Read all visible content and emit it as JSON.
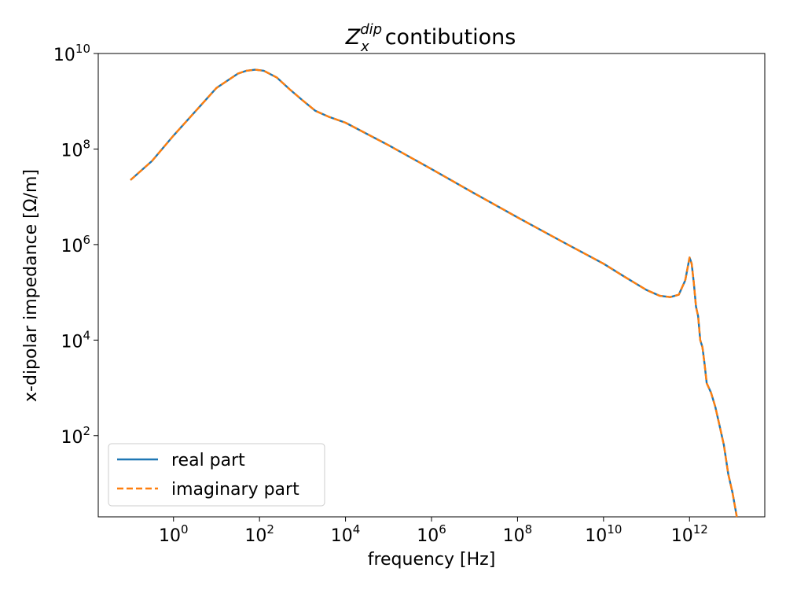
{
  "chart_data": {
    "type": "line",
    "title": {
      "symbol": "Z",
      "subscript": "x",
      "superscript": "dip",
      "text": "contibutions"
    },
    "xlabel": "frequency [Hz]",
    "ylabel": "x-dipolar impedance [Ω/m]",
    "xscale": "log",
    "yscale": "log",
    "xlim_log10": [
      -1.75,
      13.75
    ],
    "ylim_log10": [
      0.3,
      10.0
    ],
    "x_ticks": [
      {
        "base": "10",
        "exp": "0",
        "log": 0
      },
      {
        "base": "10",
        "exp": "2",
        "log": 2
      },
      {
        "base": "10",
        "exp": "4",
        "log": 4
      },
      {
        "base": "10",
        "exp": "6",
        "log": 6
      },
      {
        "base": "10",
        "exp": "8",
        "log": 8
      },
      {
        "base": "10",
        "exp": "10",
        "log": 10
      },
      {
        "base": "10",
        "exp": "12",
        "log": 12
      }
    ],
    "y_ticks": [
      {
        "base": "10",
        "exp": "2",
        "log": 2
      },
      {
        "base": "10",
        "exp": "4",
        "log": 4
      },
      {
        "base": "10",
        "exp": "6",
        "log": 6
      },
      {
        "base": "10",
        "exp": "8",
        "log": 8
      },
      {
        "base": "10",
        "exp": "10",
        "log": 10
      }
    ],
    "grid": false,
    "legend_position": "lower-left",
    "series": [
      {
        "name": "real part",
        "color": "#1f77b4",
        "style": "solid",
        "log_x": [
          -1.0,
          -0.5,
          0.0,
          0.5,
          1.0,
          1.5,
          1.7,
          1.9,
          2.1,
          2.4,
          2.7,
          3.0,
          3.3,
          3.6,
          4.0,
          5.0,
          6.0,
          7.0,
          8.0,
          9.0,
          10.0,
          10.5,
          11.0,
          11.3,
          11.55,
          11.75,
          11.9,
          12.0,
          12.05,
          12.1,
          12.15,
          12.2,
          12.25,
          12.3,
          12.35,
          12.4,
          12.5,
          12.6,
          12.7,
          12.8,
          12.9,
          13.0,
          13.1
        ],
        "log_y": [
          7.35,
          7.75,
          8.28,
          8.78,
          9.28,
          9.58,
          9.64,
          9.66,
          9.64,
          9.5,
          9.25,
          9.02,
          8.8,
          8.68,
          8.55,
          8.08,
          7.58,
          7.07,
          6.57,
          6.08,
          5.6,
          5.32,
          5.05,
          4.93,
          4.9,
          4.95,
          5.25,
          5.73,
          5.6,
          5.2,
          4.7,
          4.5,
          4.0,
          3.85,
          3.5,
          3.1,
          2.9,
          2.6,
          2.2,
          1.8,
          1.2,
          0.8,
          0.3
        ]
      },
      {
        "name": "imaginary part",
        "color": "#ff7f0e",
        "style": "dashed",
        "log_x": [
          -1.0,
          -0.5,
          0.0,
          0.5,
          1.0,
          1.5,
          1.7,
          1.9,
          2.1,
          2.4,
          2.7,
          3.0,
          3.3,
          3.6,
          4.0,
          5.0,
          6.0,
          7.0,
          8.0,
          9.0,
          10.0,
          10.5,
          11.0,
          11.3,
          11.55,
          11.75,
          11.9,
          12.0,
          12.05,
          12.1,
          12.15,
          12.2,
          12.25,
          12.3,
          12.35,
          12.4,
          12.5,
          12.6,
          12.7,
          12.8,
          12.9,
          13.0,
          13.1
        ],
        "log_y": [
          7.35,
          7.75,
          8.28,
          8.78,
          9.28,
          9.58,
          9.64,
          9.66,
          9.64,
          9.5,
          9.25,
          9.02,
          8.8,
          8.68,
          8.55,
          8.08,
          7.58,
          7.07,
          6.57,
          6.08,
          5.6,
          5.32,
          5.05,
          4.93,
          4.9,
          4.95,
          5.25,
          5.73,
          5.6,
          5.2,
          4.7,
          4.5,
          4.0,
          3.85,
          3.5,
          3.1,
          2.9,
          2.6,
          2.2,
          1.8,
          1.2,
          0.8,
          0.3
        ]
      }
    ]
  }
}
